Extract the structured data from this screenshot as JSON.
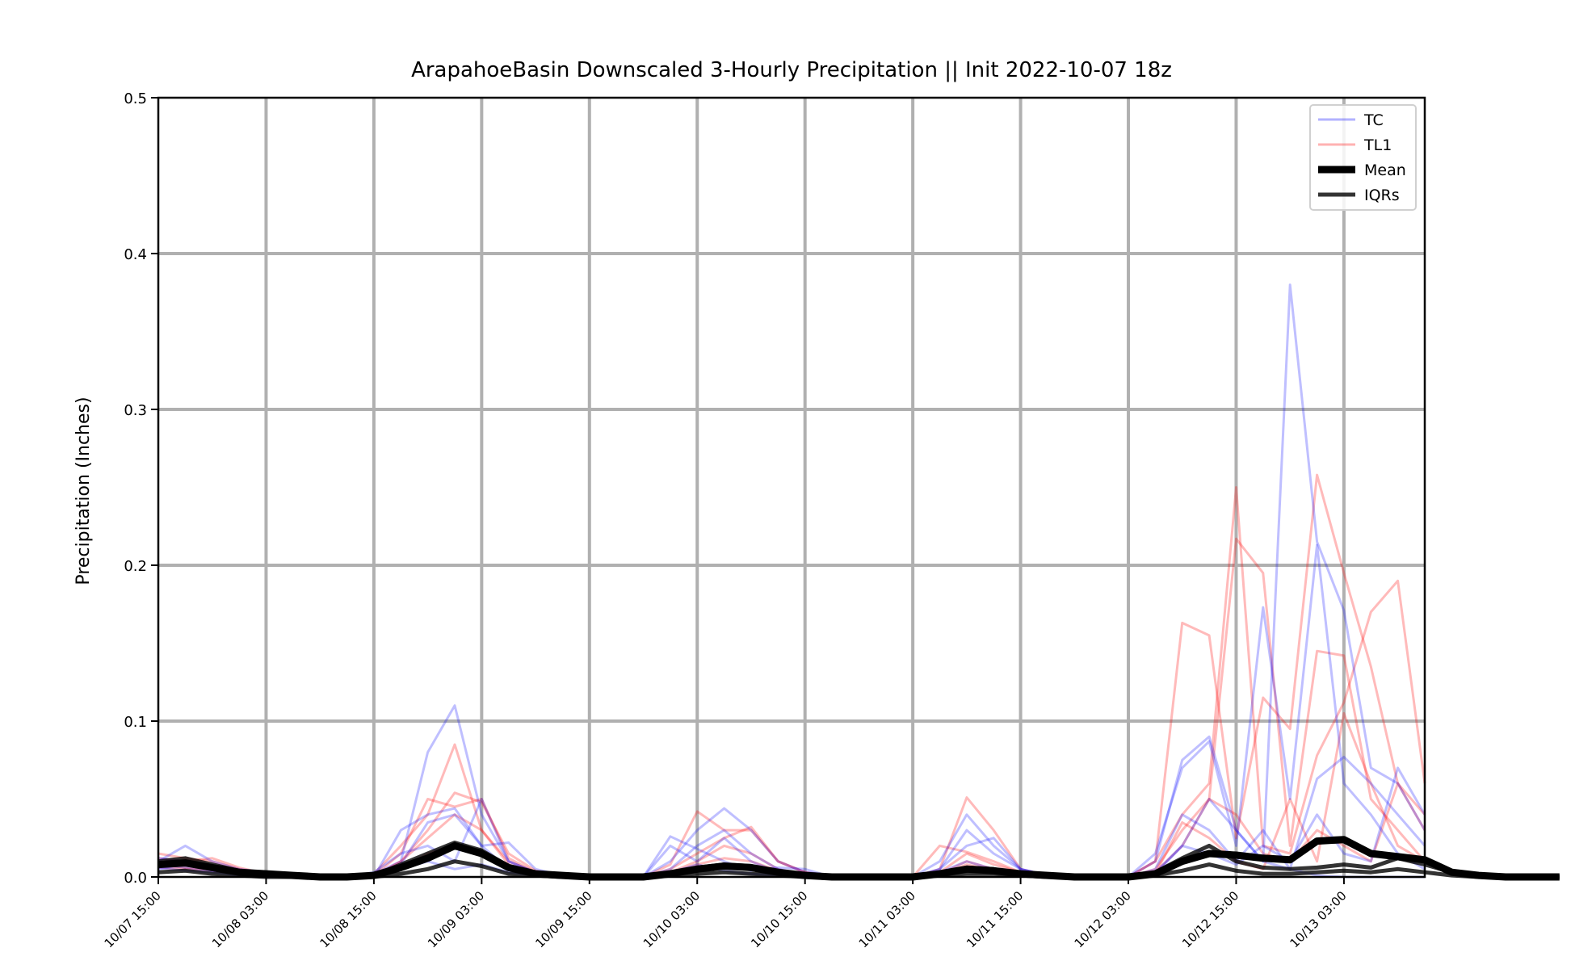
{
  "chart_data": {
    "type": "line",
    "title": "ArapahoeBasin Downscaled 3-Hourly Precipitation || Init 2022-10-07 18z",
    "ylabel": "Precipitation (Inches)",
    "xlabel": "",
    "ylim": [
      0,
      0.5
    ],
    "yticks": [
      "0.0",
      "0.1",
      "0.2",
      "0.3",
      "0.4",
      "0.5"
    ],
    "x_ticks": [
      "10/07 15:00",
      "10/08 03:00",
      "10/08 15:00",
      "10/09 03:00",
      "10/09 15:00",
      "10/10 03:00",
      "10/10 15:00",
      "10/11 03:00",
      "10/11 15:00",
      "10/12 03:00",
      "10/12 15:00",
      "10/13 03:00"
    ],
    "x_unit": "hours since 10/07 15:00 (3-hourly steps)",
    "xlim": [
      0,
      141
    ],
    "grid": true,
    "legend_position": "top-right",
    "legend": [
      {
        "label": "TC",
        "color": "#0000ff",
        "style": "thin-translucent"
      },
      {
        "label": "TL1",
        "color": "#ff0000",
        "style": "thin-translucent"
      },
      {
        "label": "Mean",
        "color": "#000000",
        "style": "thick"
      },
      {
        "label": "IQRs",
        "color": "#000000",
        "style": "medium"
      }
    ],
    "tc_members": [
      {
        "name": "TC",
        "y": [
          0.01,
          0.02,
          0.01,
          0.005,
          0.003,
          0.001,
          0.0,
          0.0,
          0.002,
          0.01,
          0.08,
          0.11,
          0.04,
          0.01,
          0.003,
          0.001,
          0.0,
          0.0,
          0.0,
          0.01,
          0.03,
          0.044,
          0.03,
          0.01,
          0.003,
          0.001,
          0.0,
          0.0,
          0.0,
          0.005,
          0.03,
          0.015,
          0.005,
          0.001,
          0.0,
          0.0,
          0.0,
          0.002,
          0.02,
          0.05,
          0.03,
          0.01,
          0.005,
          0.001,
          0.0,
          0.0,
          0.0,
          0.0
        ]
      },
      {
        "name": "TC",
        "y": [
          0.005,
          0.008,
          0.005,
          0.002,
          0.001,
          0.0,
          0.0,
          0.0,
          0.0,
          0.03,
          0.04,
          0.044,
          0.02,
          0.005,
          0.001,
          0.0,
          0.0,
          0.0,
          0.0,
          0.02,
          0.01,
          0.025,
          0.01,
          0.003,
          0.001,
          0.0,
          0.0,
          0.0,
          0.0,
          0.01,
          0.04,
          0.02,
          0.005,
          0.001,
          0.0,
          0.0,
          0.0,
          0.01,
          0.075,
          0.09,
          0.03,
          0.01,
          0.38,
          0.215,
          0.171,
          0.07,
          0.06,
          0.03
        ]
      },
      {
        "name": "TC",
        "y": [
          0.012,
          0.01,
          0.006,
          0.003,
          0.001,
          0.0,
          0.0,
          0.0,
          0.003,
          0.015,
          0.02,
          0.01,
          0.05,
          0.01,
          0.003,
          0.0,
          0.0,
          0.0,
          0.0,
          0.005,
          0.02,
          0.03,
          0.015,
          0.005,
          0.001,
          0.0,
          0.0,
          0.0,
          0.0,
          0.005,
          0.02,
          0.025,
          0.005,
          0.001,
          0.0,
          0.0,
          0.0,
          0.015,
          0.07,
          0.087,
          0.02,
          0.173,
          0.05,
          0.213,
          0.06,
          0.04,
          0.015,
          0.005
        ]
      },
      {
        "name": "TC",
        "y": [
          0.008,
          0.006,
          0.004,
          0.002,
          0.001,
          0.0,
          0.0,
          0.0,
          0.001,
          0.008,
          0.035,
          0.04,
          0.02,
          0.022,
          0.005,
          0.001,
          0.0,
          0.0,
          0.0,
          0.026,
          0.018,
          0.01,
          0.004,
          0.006,
          0.005,
          0.0,
          0.0,
          0.0,
          0.0,
          0.003,
          0.01,
          0.005,
          0.002,
          0.0,
          0.0,
          0.0,
          0.0,
          0.005,
          0.04,
          0.03,
          0.01,
          0.03,
          0.005,
          0.063,
          0.077,
          0.06,
          0.04,
          0.02
        ]
      },
      {
        "name": "TC",
        "y": [
          0.006,
          0.004,
          0.003,
          0.001,
          0.0,
          0.0,
          0.0,
          0.0,
          0.0,
          0.005,
          0.01,
          0.005,
          0.008,
          0.003,
          0.001,
          0.0,
          0.0,
          0.0,
          0.0,
          0.003,
          0.008,
          0.004,
          0.002,
          0.001,
          0.0,
          0.0,
          0.0,
          0.0,
          0.0,
          0.002,
          0.006,
          0.004,
          0.001,
          0.0,
          0.0,
          0.0,
          0.0,
          0.003,
          0.02,
          0.015,
          0.008,
          0.02,
          0.01,
          0.04,
          0.015,
          0.01,
          0.07,
          0.04
        ]
      }
    ],
    "tl1_members": [
      {
        "name": "TL1",
        "y": [
          0.015,
          0.012,
          0.01,
          0.005,
          0.002,
          0.0,
          0.0,
          0.0,
          0.002,
          0.02,
          0.04,
          0.085,
          0.03,
          0.01,
          0.003,
          0.001,
          0.0,
          0.0,
          0.0,
          0.008,
          0.042,
          0.03,
          0.03,
          0.01,
          0.003,
          0.001,
          0.0,
          0.0,
          0.0,
          0.02,
          0.016,
          0.01,
          0.003,
          0.001,
          0.0,
          0.0,
          0.0,
          0.01,
          0.163,
          0.155,
          0.025,
          0.115,
          0.095,
          0.258,
          0.195,
          0.135,
          0.06,
          0.04
        ]
      },
      {
        "name": "TL1",
        "y": [
          0.012,
          0.01,
          0.012,
          0.006,
          0.002,
          0.0,
          0.0,
          0.0,
          0.001,
          0.01,
          0.03,
          0.054,
          0.048,
          0.015,
          0.004,
          0.001,
          0.0,
          0.0,
          0.0,
          0.005,
          0.015,
          0.025,
          0.032,
          0.01,
          0.003,
          0.0,
          0.0,
          0.0,
          0.0,
          0.005,
          0.051,
          0.03,
          0.005,
          0.001,
          0.0,
          0.0,
          0.0,
          0.01,
          0.04,
          0.06,
          0.25,
          0.02,
          0.015,
          0.078,
          0.112,
          0.17,
          0.19,
          0.06
        ]
      },
      {
        "name": "TL1",
        "y": [
          0.01,
          0.008,
          0.006,
          0.004,
          0.002,
          0.0,
          0.0,
          0.0,
          0.001,
          0.015,
          0.05,
          0.045,
          0.05,
          0.012,
          0.003,
          0.0,
          0.0,
          0.0,
          0.0,
          0.003,
          0.01,
          0.02,
          0.015,
          0.005,
          0.001,
          0.0,
          0.0,
          0.0,
          0.0,
          0.003,
          0.015,
          0.008,
          0.003,
          0.0,
          0.0,
          0.0,
          0.0,
          0.005,
          0.03,
          0.05,
          0.217,
          0.195,
          0.02,
          0.145,
          0.142,
          0.05,
          0.03,
          0.01
        ]
      },
      {
        "name": "TL1",
        "y": [
          0.008,
          0.006,
          0.005,
          0.003,
          0.001,
          0.0,
          0.0,
          0.0,
          0.0,
          0.01,
          0.025,
          0.04,
          0.03,
          0.008,
          0.002,
          0.0,
          0.0,
          0.0,
          0.0,
          0.002,
          0.008,
          0.012,
          0.01,
          0.004,
          0.001,
          0.0,
          0.0,
          0.0,
          0.0,
          0.002,
          0.01,
          0.005,
          0.002,
          0.0,
          0.0,
          0.0,
          0.0,
          0.003,
          0.02,
          0.05,
          0.04,
          0.015,
          0.01,
          0.03,
          0.02,
          0.01,
          0.06,
          0.03
        ]
      },
      {
        "name": "TL1",
        "y": [
          0.006,
          0.005,
          0.004,
          0.002,
          0.001,
          0.0,
          0.0,
          0.0,
          0.0,
          0.005,
          0.015,
          0.02,
          0.015,
          0.005,
          0.001,
          0.0,
          0.0,
          0.0,
          0.0,
          0.001,
          0.005,
          0.008,
          0.006,
          0.002,
          0.0,
          0.0,
          0.0,
          0.0,
          0.0,
          0.001,
          0.008,
          0.004,
          0.001,
          0.0,
          0.0,
          0.0,
          0.0,
          0.002,
          0.035,
          0.025,
          0.01,
          0.005,
          0.05,
          0.01,
          0.105,
          0.06,
          0.02,
          0.01
        ]
      }
    ],
    "mean": [
      0.008,
      0.009,
      0.006,
      0.003,
      0.002,
      0.001,
      0.0,
      0.0,
      0.001,
      0.006,
      0.012,
      0.02,
      0.015,
      0.006,
      0.002,
      0.001,
      0.0,
      0.0,
      0.0,
      0.002,
      0.005,
      0.007,
      0.006,
      0.003,
      0.001,
      0.0,
      0.0,
      0.0,
      0.0,
      0.002,
      0.005,
      0.004,
      0.002,
      0.001,
      0.0,
      0.0,
      0.0,
      0.002,
      0.01,
      0.015,
      0.014,
      0.012,
      0.011,
      0.023,
      0.024,
      0.015,
      0.013,
      0.011,
      0.003,
      0.001,
      0.0,
      0.0,
      0.0
    ],
    "iqr_upper": [
      0.01,
      0.012,
      0.008,
      0.004,
      0.002,
      0.001,
      0.0,
      0.0,
      0.001,
      0.008,
      0.015,
      0.022,
      0.017,
      0.007,
      0.002,
      0.001,
      0.0,
      0.0,
      0.0,
      0.002,
      0.006,
      0.008,
      0.007,
      0.003,
      0.001,
      0.0,
      0.0,
      0.0,
      0.0,
      0.002,
      0.006,
      0.005,
      0.002,
      0.001,
      0.0,
      0.0,
      0.0,
      0.003,
      0.012,
      0.02,
      0.01,
      0.006,
      0.005,
      0.006,
      0.008,
      0.006,
      0.012,
      0.008,
      0.003,
      0.001,
      0.0,
      0.0,
      0.0
    ],
    "iqr_lower": [
      0.003,
      0.004,
      0.002,
      0.001,
      0.0,
      0.0,
      0.0,
      0.0,
      0.0,
      0.002,
      0.005,
      0.01,
      0.007,
      0.002,
      0.001,
      0.0,
      0.0,
      0.0,
      0.0,
      0.001,
      0.002,
      0.003,
      0.002,
      0.001,
      0.0,
      0.0,
      0.0,
      0.0,
      0.0,
      0.001,
      0.002,
      0.002,
      0.001,
      0.0,
      0.0,
      0.0,
      0.0,
      0.001,
      0.004,
      0.008,
      0.004,
      0.002,
      0.002,
      0.003,
      0.004,
      0.003,
      0.005,
      0.003,
      0.001,
      0.0,
      0.0,
      0.0,
      0.0
    ]
  }
}
